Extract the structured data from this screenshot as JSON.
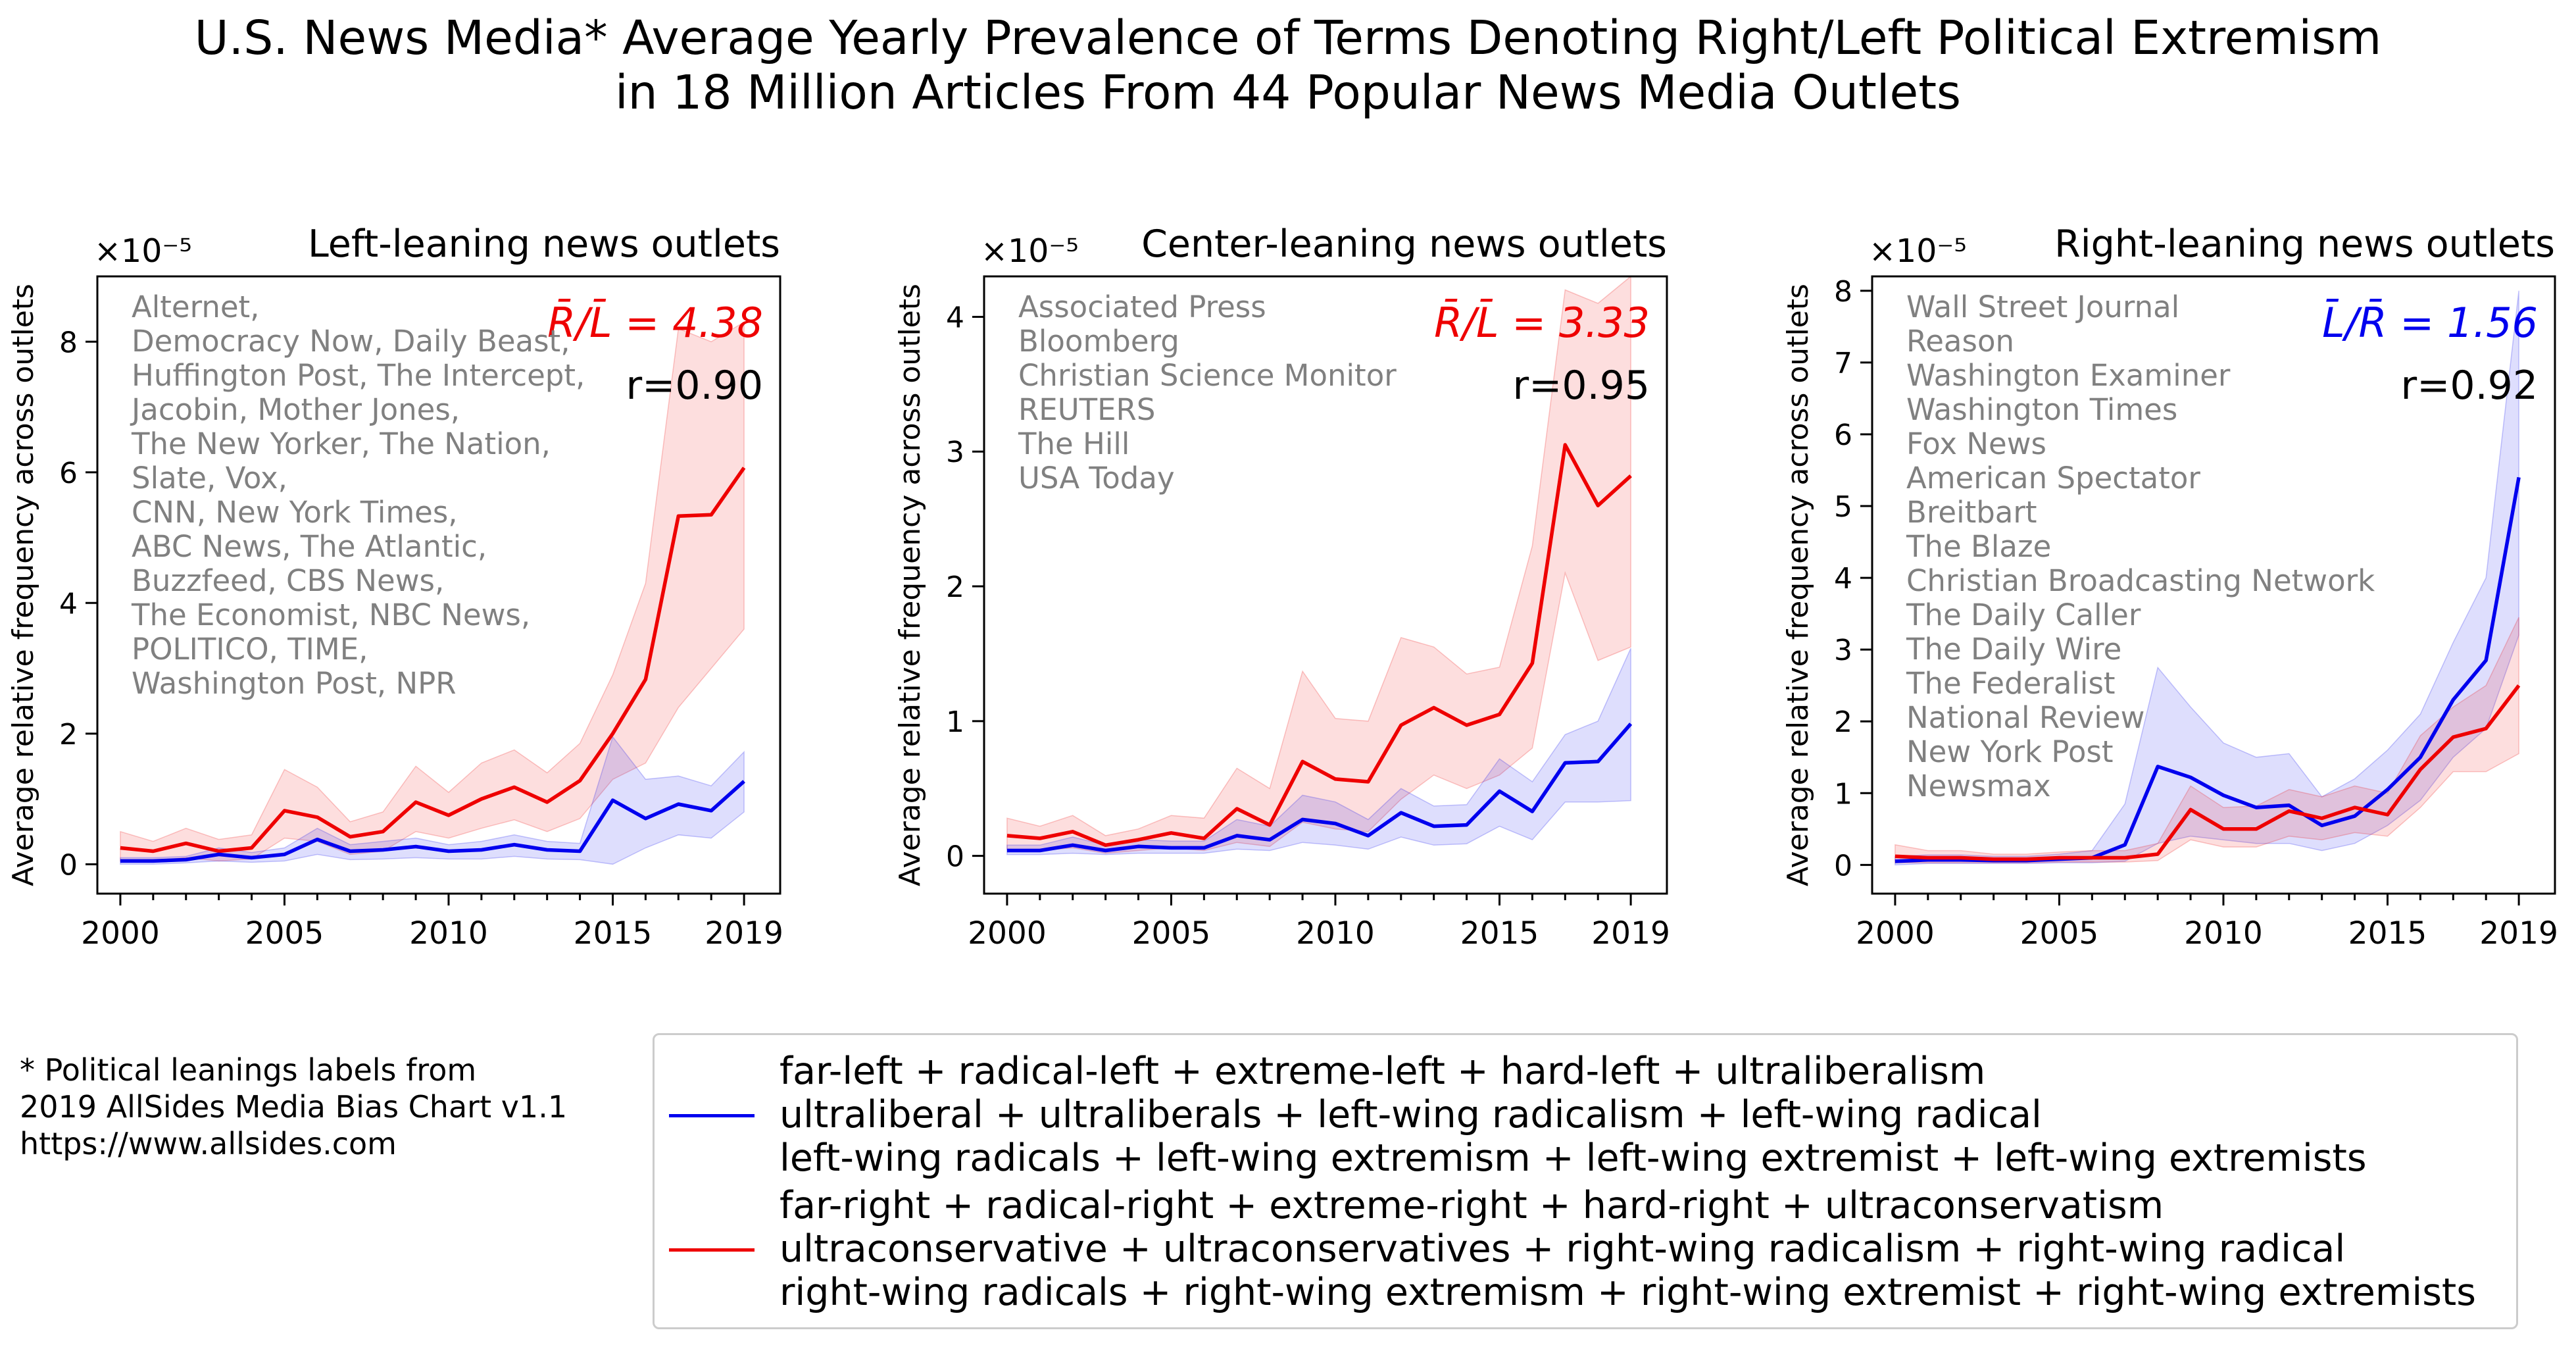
{
  "figure": {
    "title_line1": "U.S. News Media* Average Yearly Prevalence of Terms Denoting Right/Left Political Extremism",
    "title_line2": "in 18 Million Articles From 44 Popular News Media Outlets",
    "footnote": [
      "* Political leanings labels from",
      "2019 AllSides Media Bias Chart v1.1",
      "https://www.allsides.com"
    ],
    "colors": {
      "left_terms": "#0000ee",
      "right_terms": "#ee0000",
      "outlets_text": "#808080"
    }
  },
  "legend": {
    "items": [
      {
        "color": "#0000ee",
        "lines": [
          "far-left + radical-left + extreme-left + hard-left + ultraliberalism",
          "ultraliberal + ultraliberals + left-wing radicalism + left-wing radical",
          "left-wing radicals + left-wing extremism + left-wing extremist + left-wing extremists"
        ]
      },
      {
        "color": "#ee0000",
        "lines": [
          "far-right + radical-right + extreme-right + hard-right + ultraconservatism",
          "ultraconservative + ultraconservatives + right-wing radicalism + right-wing radical",
          "right-wing radicals + right-wing extremism + right-wing extremist + right-wing extremists"
        ]
      }
    ]
  },
  "chart_data": [
    {
      "type": "line",
      "title": "Left-leaning news outlets",
      "ylabel": "Average relative frequency across outlets",
      "y_multiplier": "×10⁻⁵",
      "ratio_label": "R̄/L̄ = 4.38",
      "ratio_color": "#ee0000",
      "r_label": "r=0.90",
      "outlets": [
        "Alternet,",
        "Democracy Now, Daily Beast,",
        "Huffington Post, The Intercept,",
        "Jacobin, Mother Jones,",
        "The New Yorker, The Nation,",
        "Slate, Vox,",
        "CNN, New York Times,",
        "ABC News, The Atlantic,",
        "Buzzfeed, CBS News,",
        "The Economist, NBC News,",
        "POLITICO, TIME,",
        "Washington Post, NPR"
      ],
      "x": [
        2000,
        2001,
        2002,
        2003,
        2004,
        2005,
        2006,
        2007,
        2008,
        2009,
        2010,
        2011,
        2012,
        2013,
        2014,
        2015,
        2016,
        2017,
        2018,
        2019
      ],
      "xticks": [
        2000,
        2005,
        2010,
        2015,
        2019
      ],
      "xlim": [
        1999.3,
        2020.1
      ],
      "yticks": [
        0,
        2,
        4,
        6,
        8
      ],
      "ylim": [
        -0.45,
        9.0
      ],
      "series": [
        {
          "color": "#ee0000",
          "values": [
            0.25,
            0.2,
            0.32,
            0.2,
            0.25,
            0.82,
            0.72,
            0.42,
            0.5,
            0.95,
            0.75,
            1.0,
            1.18,
            0.95,
            1.28,
            2.0,
            2.83,
            5.33,
            5.35,
            6.07
          ],
          "upper": [
            0.5,
            0.35,
            0.55,
            0.38,
            0.45,
            1.45,
            1.18,
            0.65,
            0.8,
            1.5,
            1.1,
            1.55,
            1.75,
            1.4,
            1.85,
            2.9,
            4.3,
            8.2,
            8.0,
            8.3
          ],
          "lower": [
            0.05,
            0.05,
            0.1,
            0.05,
            0.08,
            0.4,
            0.35,
            0.15,
            0.2,
            0.5,
            0.4,
            0.55,
            0.68,
            0.5,
            0.7,
            1.3,
            1.55,
            2.4,
            3.0,
            3.6
          ]
        },
        {
          "color": "#0000ee",
          "values": [
            0.05,
            0.05,
            0.07,
            0.15,
            0.1,
            0.15,
            0.38,
            0.2,
            0.22,
            0.27,
            0.2,
            0.22,
            0.3,
            0.22,
            0.2,
            0.98,
            0.7,
            0.92,
            0.82,
            1.27
          ],
          "upper": [
            0.1,
            0.1,
            0.12,
            0.25,
            0.18,
            0.25,
            0.55,
            0.3,
            0.35,
            0.4,
            0.3,
            0.35,
            0.45,
            0.35,
            0.32,
            1.95,
            1.3,
            1.35,
            1.2,
            1.72
          ],
          "lower": [
            0.0,
            0.0,
            0.02,
            0.05,
            0.03,
            0.05,
            0.15,
            0.07,
            0.08,
            0.1,
            0.08,
            0.08,
            0.12,
            0.08,
            0.07,
            0.0,
            0.25,
            0.45,
            0.4,
            0.8
          ]
        }
      ]
    },
    {
      "type": "line",
      "title": "Center-leaning news outlets",
      "ylabel": "Average relative frequency across outlets",
      "y_multiplier": "×10⁻⁵",
      "ratio_label": "R̄/L̄ = 3.33",
      "ratio_color": "#ee0000",
      "r_label": "r=0.95",
      "outlets": [
        "Associated Press",
        "Bloomberg",
        "Christian Science Monitor",
        "REUTERS",
        "The Hill",
        "USA Today"
      ],
      "x": [
        2000,
        2001,
        2002,
        2003,
        2004,
        2005,
        2006,
        2007,
        2008,
        2009,
        2010,
        2011,
        2012,
        2013,
        2014,
        2015,
        2016,
        2017,
        2018,
        2019
      ],
      "xticks": [
        2000,
        2005,
        2010,
        2015,
        2019
      ],
      "xlim": [
        1999.3,
        2020.1
      ],
      "yticks": [
        0,
        1,
        2,
        3,
        4
      ],
      "ylim": [
        -0.28,
        4.3
      ],
      "series": [
        {
          "color": "#ee0000",
          "values": [
            0.15,
            0.13,
            0.18,
            0.08,
            0.12,
            0.17,
            0.13,
            0.35,
            0.23,
            0.7,
            0.57,
            0.55,
            0.97,
            1.1,
            0.97,
            1.05,
            1.43,
            3.05,
            2.6,
            2.82
          ],
          "upper": [
            0.28,
            0.22,
            0.3,
            0.15,
            0.2,
            0.3,
            0.28,
            0.65,
            0.5,
            1.37,
            1.02,
            1.0,
            1.62,
            1.55,
            1.35,
            1.4,
            2.3,
            4.2,
            4.1,
            4.3
          ],
          "lower": [
            0.05,
            0.04,
            0.06,
            0.02,
            0.04,
            0.06,
            0.04,
            0.1,
            0.07,
            0.25,
            0.2,
            0.18,
            0.42,
            0.6,
            0.5,
            0.6,
            0.8,
            2.1,
            1.45,
            1.55
          ]
        },
        {
          "color": "#0000ee",
          "values": [
            0.04,
            0.04,
            0.08,
            0.04,
            0.07,
            0.06,
            0.06,
            0.15,
            0.12,
            0.27,
            0.24,
            0.15,
            0.32,
            0.22,
            0.23,
            0.48,
            0.33,
            0.69,
            0.7,
            0.98
          ],
          "upper": [
            0.08,
            0.08,
            0.14,
            0.08,
            0.12,
            0.11,
            0.11,
            0.27,
            0.22,
            0.45,
            0.4,
            0.27,
            0.5,
            0.37,
            0.38,
            0.72,
            0.55,
            0.9,
            1.0,
            1.54
          ],
          "lower": [
            0.01,
            0.01,
            0.02,
            0.01,
            0.02,
            0.02,
            0.02,
            0.05,
            0.04,
            0.1,
            0.08,
            0.05,
            0.14,
            0.08,
            0.09,
            0.22,
            0.12,
            0.4,
            0.4,
            0.41
          ]
        }
      ]
    },
    {
      "type": "line",
      "title": "Right-leaning news outlets",
      "ylabel": "Average relative frequency across outlets",
      "y_multiplier": "×10⁻⁵",
      "ratio_label": "L̄/R̄ = 1.56",
      "ratio_color": "#0000ee",
      "r_label": "r=0.92",
      "outlets": [
        "Wall Street Journal",
        "Reason",
        "Washington Examiner",
        "Washington Times",
        "Fox News",
        "American Spectator",
        "Breitbart",
        "The Blaze",
        "Christian Broadcasting Network",
        "The Daily Caller",
        "The Daily Wire",
        "The Federalist",
        "National Review",
        "New York Post",
        "Newsmax"
      ],
      "x": [
        2000,
        2001,
        2002,
        2003,
        2004,
        2005,
        2006,
        2007,
        2008,
        2009,
        2010,
        2011,
        2012,
        2013,
        2014,
        2015,
        2016,
        2017,
        2018,
        2019
      ],
      "xticks": [
        2000,
        2005,
        2010,
        2015,
        2019
      ],
      "xlim": [
        1999.3,
        2020.1
      ],
      "yticks": [
        0,
        1,
        2,
        3,
        4,
        5,
        6,
        7,
        8
      ],
      "ylim": [
        -0.4,
        8.2
      ],
      "series": [
        {
          "color": "#0000ee",
          "values": [
            0.05,
            0.07,
            0.07,
            0.06,
            0.06,
            0.08,
            0.1,
            0.28,
            1.37,
            1.22,
            0.97,
            0.8,
            0.83,
            0.55,
            0.68,
            1.05,
            1.5,
            2.3,
            2.85,
            5.4
          ],
          "upper": [
            0.12,
            0.14,
            0.14,
            0.12,
            0.12,
            0.15,
            0.2,
            0.85,
            2.75,
            2.2,
            1.7,
            1.5,
            1.55,
            0.95,
            1.2,
            1.6,
            2.1,
            3.1,
            4.0,
            8.0
          ],
          "lower": [
            0.0,
            0.02,
            0.02,
            0.02,
            0.02,
            0.03,
            0.03,
            0.05,
            0.3,
            0.4,
            0.35,
            0.3,
            0.3,
            0.2,
            0.3,
            0.55,
            0.9,
            1.5,
            1.9,
            3.2
          ]
        },
        {
          "color": "#ee0000",
          "values": [
            0.12,
            0.1,
            0.1,
            0.08,
            0.08,
            0.1,
            0.1,
            0.1,
            0.15,
            0.77,
            0.5,
            0.5,
            0.75,
            0.65,
            0.8,
            0.7,
            1.33,
            1.78,
            1.9,
            2.5
          ],
          "upper": [
            0.28,
            0.2,
            0.2,
            0.15,
            0.15,
            0.18,
            0.2,
            0.2,
            0.3,
            1.1,
            0.8,
            0.82,
            1.05,
            0.95,
            1.1,
            1.0,
            1.8,
            2.2,
            2.5,
            3.45
          ],
          "lower": [
            0.03,
            0.03,
            0.03,
            0.03,
            0.03,
            0.04,
            0.04,
            0.04,
            0.06,
            0.35,
            0.25,
            0.25,
            0.4,
            0.35,
            0.45,
            0.4,
            0.8,
            1.3,
            1.3,
            1.55
          ]
        }
      ]
    }
  ]
}
